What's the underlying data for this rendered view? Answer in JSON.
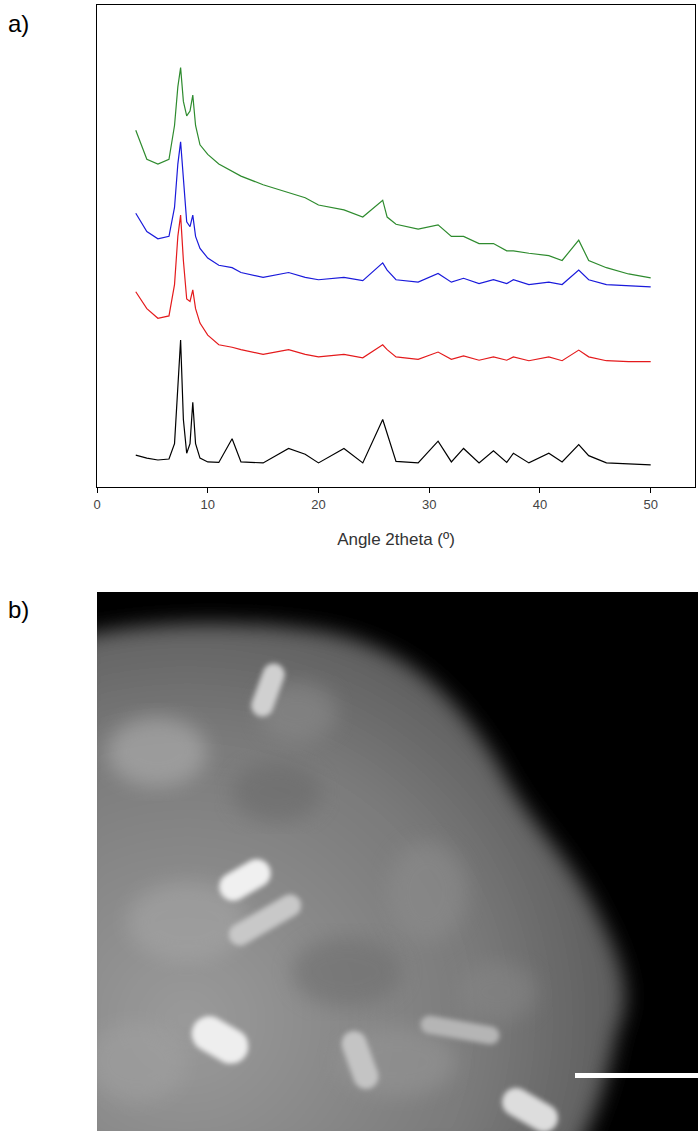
{
  "chart_data": {
    "type": "line",
    "xlabel": "Angle 2theta (º)",
    "x": [
      3.5,
      4.5,
      5.5,
      6.5,
      7.0,
      7.3,
      7.55,
      7.8,
      8.1,
      8.4,
      8.65,
      8.9,
      9.3,
      10,
      11,
      12.2,
      13,
      15,
      17.3,
      18.8,
      20,
      22.3,
      24,
      25.8,
      26.2,
      27,
      29,
      30.8,
      32,
      33.1,
      34.5,
      35.8,
      37,
      37.6,
      39,
      40.8,
      42,
      43.5,
      44.4,
      46,
      48,
      50
    ],
    "series": [
      {
        "color": "#000000",
        "values": [
          6.6,
          6.0,
          5.6,
          5.8,
          9,
          20,
          30.5,
          14,
          7,
          9,
          17.6,
          9,
          6,
          5.2,
          5.1,
          10,
          5.2,
          5,
          8,
          6.8,
          5,
          8,
          5,
          14,
          11,
          5.3,
          5,
          9.5,
          5.2,
          8,
          5,
          7.5,
          5.1,
          7,
          5,
          7,
          5.2,
          8.8,
          6.5,
          5,
          4.8,
          4.6
        ]
      },
      {
        "color": "#e41a1c",
        "values": [
          40.5,
          37,
          35,
          35.5,
          42,
          52,
          56.4,
          47,
          39,
          38.5,
          40.9,
          37,
          34,
          31.5,
          29.5,
          29,
          28.5,
          27.5,
          28.5,
          27.5,
          27,
          27.5,
          26.8,
          29.5,
          28.5,
          27,
          26.5,
          28,
          26.5,
          27.2,
          26.3,
          27,
          26.3,
          27,
          26.2,
          27,
          26.2,
          28.4,
          27,
          26.2,
          26,
          26
        ]
      },
      {
        "color": "#1a1adb",
        "values": [
          56.8,
          53,
          51.5,
          52,
          58,
          67,
          71.6,
          63,
          55,
          54,
          56.4,
          52,
          49.5,
          47.5,
          46,
          45.5,
          44.5,
          43.5,
          44.5,
          43.5,
          43,
          43.5,
          42.8,
          46.5,
          45,
          43,
          42.5,
          44.3,
          42.5,
          43.3,
          42.2,
          43,
          42.2,
          43,
          42,
          42.5,
          42,
          45,
          43,
          42,
          41.7,
          41.5
        ]
      },
      {
        "color": "#2e8b2e",
        "values": [
          74,
          68,
          67,
          68,
          75,
          83,
          87,
          80,
          77,
          78,
          81.3,
          75,
          71,
          69,
          67,
          65.5,
          64.5,
          62.7,
          61,
          60,
          58.5,
          57.5,
          56,
          59.5,
          56,
          54.5,
          53.5,
          54.4,
          52,
          52,
          50.5,
          50.5,
          49,
          49,
          48.5,
          48,
          47,
          51.2,
          47,
          45.5,
          44.2,
          43.4
        ]
      }
    ],
    "xlim": [
      0,
      54
    ],
    "xticks": [
      0,
      10,
      20,
      30,
      40,
      50
    ],
    "ylim": [
      0,
      100
    ],
    "yticks": [],
    "tick_labels": "x",
    "grid": false
  },
  "panels": [
    {
      "label": "a)"
    },
    {
      "label": "b)"
    }
  ]
}
